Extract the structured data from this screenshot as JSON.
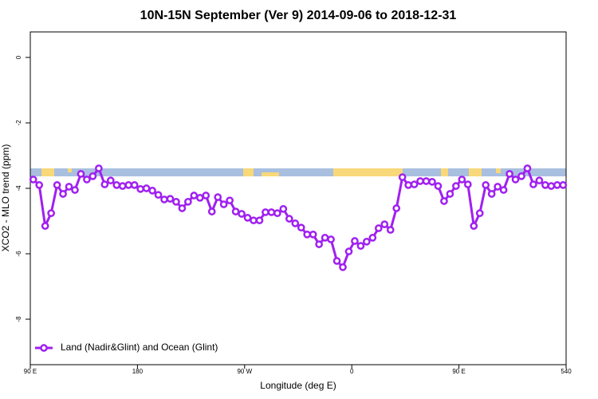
{
  "chart_data": {
    "type": "line",
    "title": "10N-15N September (Ver 9)   2014-09-06 to 2018-12-31",
    "xlabel": "Longitude (deg E)",
    "ylabel": "XCO2 - MLO trend (ppm)",
    "xlim": [
      90,
      540
    ],
    "ylim": [
      -9.39,
      0.78
    ],
    "xticks": [
      {
        "value": 90,
        "label": "90 E"
      },
      180,
      {
        "value": 270,
        "label": "90 W"
      },
      {
        "value": 360,
        "label": "0"
      },
      {
        "value": 450,
        "label": "90 E"
      },
      540
    ],
    "yticks": [
      0,
      -2,
      -4,
      -6,
      -8
    ],
    "legend": "bottom left",
    "grid": false,
    "x": [
      92.5,
      97.5,
      102.5,
      107.5,
      112.5,
      117.5,
      122.5,
      127.5,
      132.5,
      137.5,
      142.5,
      147.5,
      152.5,
      157.5,
      162.5,
      167.5,
      172.5,
      177.5,
      182.5,
      187.5,
      192.5,
      197.5,
      202.5,
      207.5,
      212.5,
      217.5,
      222.5,
      227.5,
      232.5,
      237.5,
      242.5,
      247.5,
      252.5,
      257.5,
      262.5,
      267.5,
      272.5,
      277.5,
      282.5,
      287.5,
      292.5,
      297.5,
      302.5,
      307.5,
      312.5,
      317.5,
      322.5,
      327.5,
      332.5,
      337.5,
      342.5,
      347.5,
      352.5,
      357.5,
      362.5,
      367.5,
      372.5,
      377.5,
      382.5,
      387.5,
      392.5,
      397.5,
      402.5,
      407.5,
      412.5,
      417.5,
      422.5,
      427.5,
      432.5,
      437.5,
      442.5,
      447.5,
      452.5,
      457.5,
      462.5,
      467.5,
      472.5,
      477.5,
      482.5,
      487.5,
      492.5,
      497.5,
      502.5,
      507.5,
      512.5,
      517.5,
      522.5,
      527.5,
      532.5,
      537.5
    ],
    "series": [
      {
        "name": "Land (Nadir&Glint) and Ocean (Glint)",
        "color": "#a020f0",
        "values": [
          -3.73,
          -3.9,
          -5.15,
          -4.76,
          -3.9,
          -4.17,
          -3.95,
          -4.05,
          -3.56,
          -3.73,
          -3.63,
          -3.39,
          -3.88,
          -3.76,
          -3.9,
          -3.93,
          -3.9,
          -3.9,
          -4.02,
          -4.0,
          -4.07,
          -4.2,
          -4.34,
          -4.32,
          -4.41,
          -4.61,
          -4.41,
          -4.22,
          -4.29,
          -4.22,
          -4.71,
          -4.27,
          -4.49,
          -4.37,
          -4.71,
          -4.78,
          -4.9,
          -4.98,
          -4.98,
          -4.73,
          -4.73,
          -4.76,
          -4.63,
          -4.93,
          -5.07,
          -5.2,
          -5.41,
          -5.41,
          -5.71,
          -5.51,
          -5.56,
          -6.22,
          -6.41,
          -5.93,
          -5.61,
          -5.76,
          -5.63,
          -5.51,
          -5.22,
          -5.1,
          -5.27,
          -4.61,
          -3.66,
          -3.9,
          -3.88,
          -3.78,
          -3.78,
          -3.8,
          -3.93,
          -4.39,
          -4.17,
          -3.93,
          -3.73,
          -3.88,
          -5.15,
          -4.76,
          -3.9,
          -4.17,
          -3.95,
          -4.05,
          -3.56,
          -3.73,
          -3.63,
          -3.39,
          -3.88,
          -3.76,
          -3.9,
          -3.93,
          -3.9,
          -3.9
        ]
      }
    ]
  }
}
